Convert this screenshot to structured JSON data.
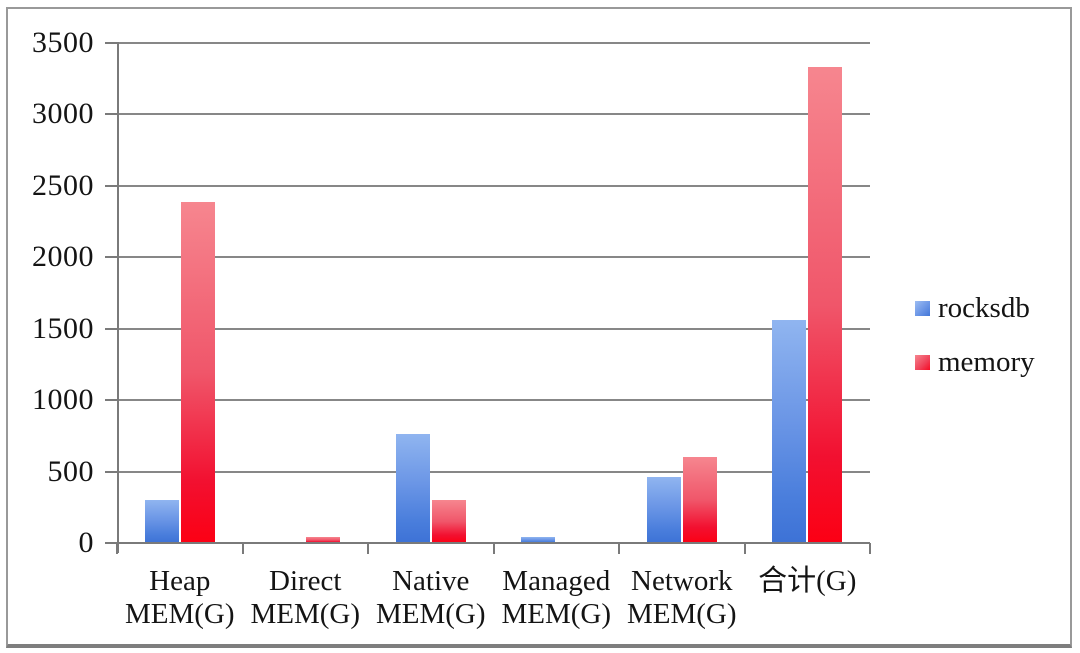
{
  "chart_data": {
    "type": "bar",
    "title": "",
    "categories": [
      "Heap MEM(G)",
      "Direct MEM(G)",
      "Native MEM(G)",
      "Managed MEM(G)",
      "Network MEM(G)",
      "合计(G)"
    ],
    "category_label_lines": [
      [
        "Heap",
        "MEM(G)"
      ],
      [
        "Direct",
        "MEM(G)"
      ],
      [
        "Native",
        "MEM(G)"
      ],
      [
        "Managed",
        "MEM(G)"
      ],
      [
        "Network",
        "MEM(G)"
      ],
      [
        "合计(G)"
      ]
    ],
    "series": [
      {
        "name": "rocksdb",
        "color": "#4A7EDC",
        "values": [
          300,
          0,
          760,
          40,
          460,
          1560
        ]
      },
      {
        "name": "memory",
        "color": "#EE2742",
        "values": [
          2390,
          40,
          300,
          0,
          600,
          3330
        ]
      }
    ],
    "xlabel": "",
    "ylabel": "",
    "ylim": [
      0,
      3500
    ],
    "ytick_step": 500,
    "ytick_labels": [
      "0",
      "500",
      "1000",
      "1500",
      "2000",
      "2500",
      "3000",
      "3500"
    ],
    "grid": true,
    "legend_position": "right",
    "legend_entries": [
      "rocksdb",
      "memory"
    ]
  },
  "colors": {
    "rocksdb_blue": "#4A7EDC",
    "memory_red": "#EE2742",
    "gridline_gray": "#878787",
    "frame_border_gray": "#999999",
    "text_black": "#141414",
    "background": "#FFFFFF"
  }
}
